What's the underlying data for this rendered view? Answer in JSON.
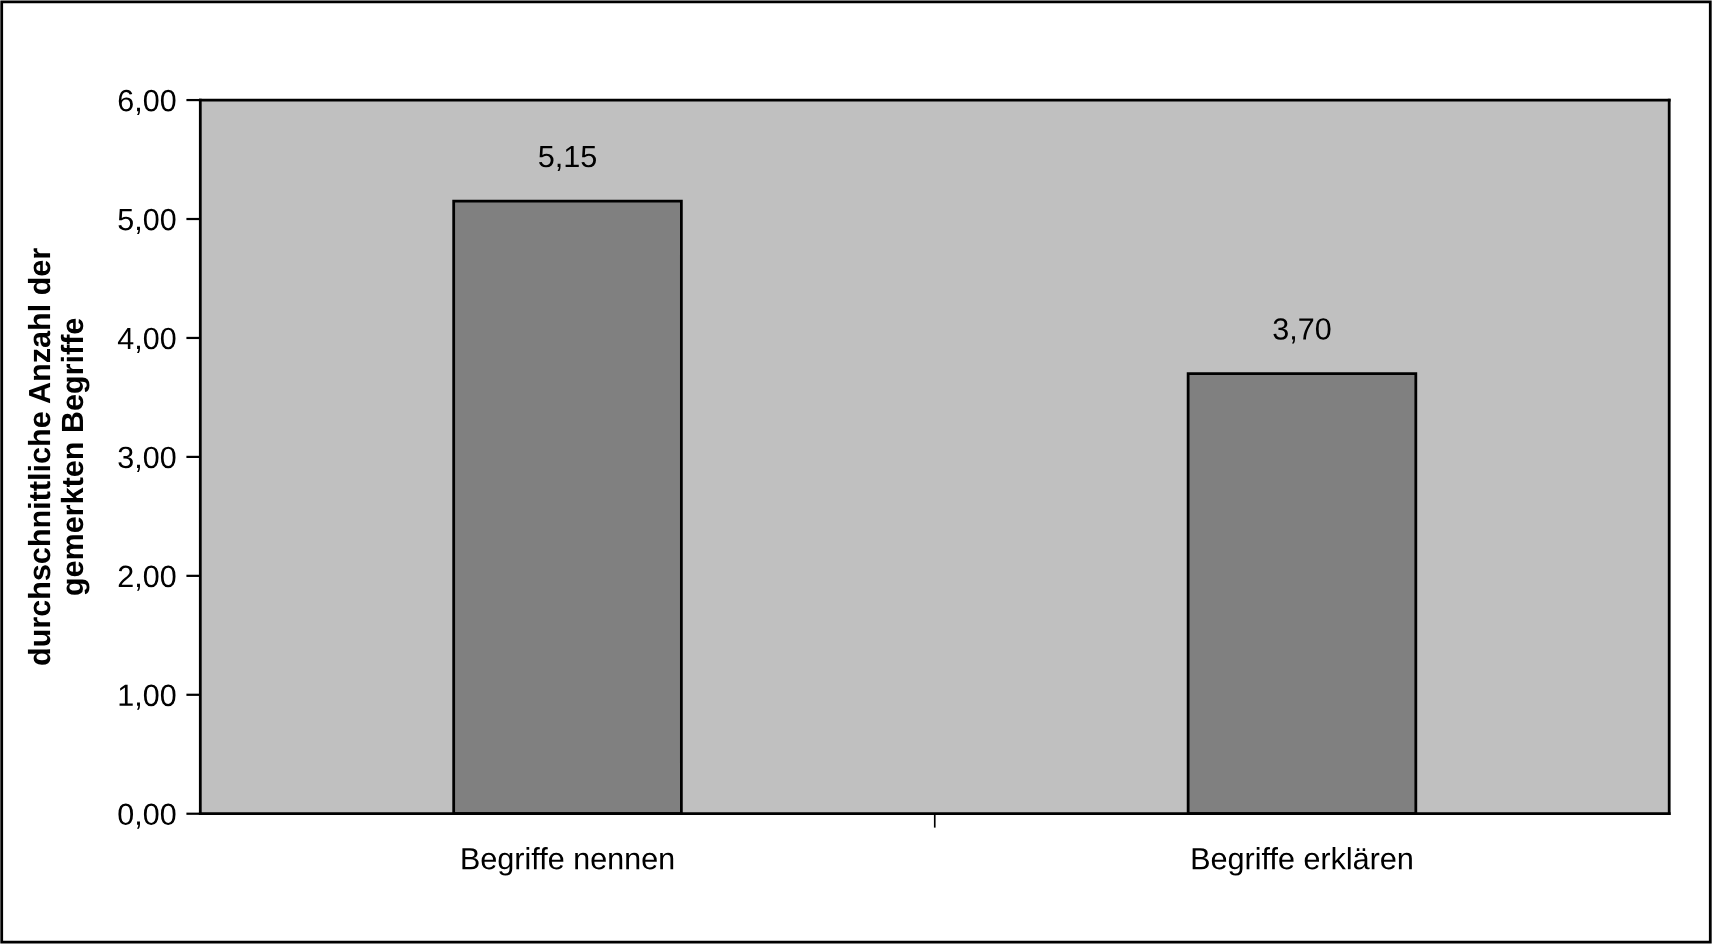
{
  "chart_data": {
    "type": "bar",
    "ylabel": "durchschnittliche Anzahl der\ngemerkten Begriffe",
    "categories": [
      "Begriffe nennen",
      "Begriffe erklären"
    ],
    "values": [
      5.15,
      3.7
    ],
    "color": "#808080",
    "value_labels": [
      "5,15",
      "3,70"
    ],
    "ylim": [
      0,
      6
    ],
    "yticks": [
      {
        "value": 0,
        "label": "0,00"
      },
      {
        "value": 1,
        "label": "1,00"
      },
      {
        "value": 2,
        "label": "2,00"
      },
      {
        "value": 3,
        "label": "3,00"
      },
      {
        "value": 4,
        "label": "4,00"
      },
      {
        "value": 5,
        "label": "5,00"
      },
      {
        "value": 6,
        "label": "6,00"
      }
    ],
    "grid": false
  }
}
